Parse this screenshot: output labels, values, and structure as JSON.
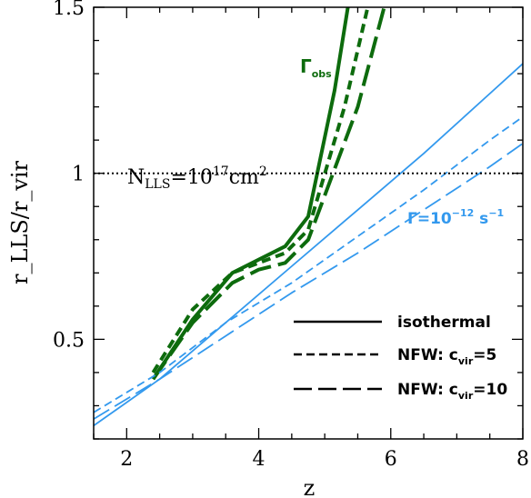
{
  "chart_data": {
    "type": "line",
    "xlabel": "z",
    "ylabel": "r_LLS/r_vir",
    "xlim": [
      1.5,
      8
    ],
    "ylim": [
      0.2,
      1.5
    ],
    "x_ticks": [
      "2",
      "4",
      "6",
      "8"
    ],
    "y_ticks": [
      "0.5",
      "1",
      "1.5"
    ],
    "reference_line": {
      "y": 1,
      "style": "dotted",
      "label_parts": {
        "base": "N",
        "sub": "LLS",
        "eq": "=10",
        "exp": "17",
        "unit": "cm",
        "unit_exp": "2"
      }
    },
    "annotations": {
      "gamma_obs": {
        "base": "Γ",
        "sub": "obs"
      },
      "gamma_const": {
        "text": "Γ=10",
        "exp": "−12",
        "unit": " s",
        "unit_exp": "−1"
      }
    },
    "legend": {
      "placement": "bottom-right",
      "entries": [
        {
          "label": "isothermal",
          "style": "solid"
        },
        {
          "label": "NFW: c",
          "sub": "vir",
          "suffix": "=5",
          "style": "short-dash"
        },
        {
          "label": "NFW: c",
          "sub": "vir",
          "suffix": "=10",
          "style": "long-dash"
        }
      ]
    },
    "colors": {
      "gamma_obs": "#0d6b0d",
      "gamma_const": "#3399ee",
      "axes": "#000000"
    },
    "series": [
      {
        "group": "gamma_obs",
        "profile": "isothermal",
        "style": "solid",
        "x": [
          2.4,
          3.0,
          3.6,
          4.0,
          4.4,
          4.75,
          5.15,
          5.35
        ],
        "y": [
          0.38,
          0.56,
          0.7,
          0.74,
          0.78,
          0.87,
          1.25,
          1.5
        ]
      },
      {
        "group": "gamma_obs",
        "profile": "NFW c=5",
        "style": "short-dash",
        "x": [
          2.4,
          3.0,
          3.6,
          4.0,
          4.4,
          4.75,
          5.3,
          5.65
        ],
        "y": [
          0.4,
          0.59,
          0.7,
          0.73,
          0.76,
          0.83,
          1.2,
          1.5
        ]
      },
      {
        "group": "gamma_obs",
        "profile": "NFW c=10",
        "style": "long-dash",
        "x": [
          2.4,
          3.0,
          3.6,
          4.0,
          4.4,
          4.75,
          5.5,
          5.9
        ],
        "y": [
          0.38,
          0.55,
          0.67,
          0.71,
          0.73,
          0.8,
          1.2,
          1.5
        ]
      },
      {
        "group": "gamma_const",
        "profile": "isothermal",
        "style": "solid",
        "x": [
          1.5,
          2.5,
          3.5,
          4.5,
          5.5,
          6.5,
          7.5,
          8.0
        ],
        "y": [
          0.24,
          0.38,
          0.55,
          0.72,
          0.89,
          1.06,
          1.24,
          1.33
        ]
      },
      {
        "group": "gamma_const",
        "profile": "NFW c=5",
        "style": "short-dash",
        "x": [
          1.5,
          2.5,
          3.5,
          4.5,
          5.5,
          6.5,
          7.5,
          8.0
        ],
        "y": [
          0.28,
          0.4,
          0.55,
          0.67,
          0.81,
          0.95,
          1.1,
          1.17
        ]
      },
      {
        "group": "gamma_const",
        "profile": "NFW c=10",
        "style": "long-dash",
        "x": [
          1.5,
          2.5,
          3.5,
          4.5,
          5.5,
          6.5,
          7.5,
          8.0
        ],
        "y": [
          0.26,
          0.38,
          0.51,
          0.64,
          0.76,
          0.89,
          1.02,
          1.09
        ]
      }
    ]
  }
}
